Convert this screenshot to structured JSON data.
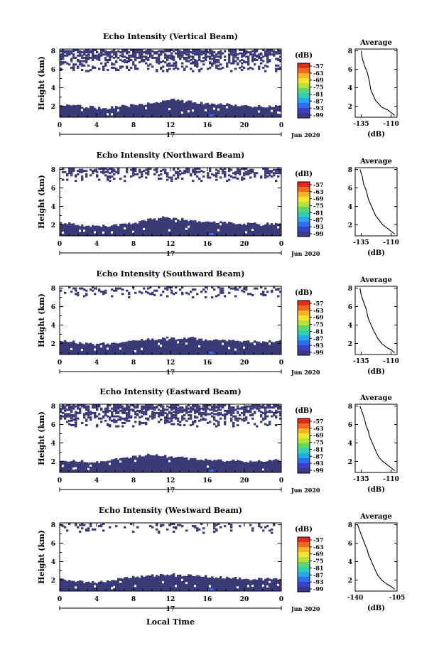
{
  "figure": {
    "date_label": "Jun 2020",
    "day_label": "17",
    "bottom_xlabel": "Local Time",
    "colorbar_unit": "(dB)",
    "colorbar_ticks": [
      "-57",
      "-63",
      "-69",
      "-75",
      "-81",
      "-87",
      "-93",
      "-99"
    ],
    "colors": {
      "echo_fill": "#3a3a78",
      "echo_accent": "#2f6df0",
      "colorbar_top": "#e52a1c",
      "colorbar_bottom": "#3a3a88"
    }
  },
  "chart_data": [
    {
      "type": "heatmap",
      "title": "Echo Intensity (Vertical Beam)",
      "ylabel": "Height (km)",
      "x_ticks": [
        "0",
        "4",
        "8",
        "12",
        "16",
        "20",
        "0"
      ],
      "y_ticks": [
        "2",
        "4",
        "6",
        "8"
      ],
      "xlim": [
        0,
        24
      ],
      "ylim": [
        0.8,
        8.2
      ],
      "colorbar_range": [
        -99,
        -57
      ],
      "low_layer_top_km": [
        2.1,
        2.1,
        2.0,
        1.9,
        1.8,
        1.8,
        1.9,
        2.0,
        2.1,
        2.2,
        2.3,
        2.5,
        2.7,
        2.6,
        2.5,
        2.4,
        2.3,
        2.2,
        2.2,
        2.1,
        2.1,
        2.0,
        2.0,
        2.0,
        2.1
      ],
      "upper_layer_km": [
        5.8,
        8.2
      ],
      "upper_coverage": 0.55
    },
    {
      "type": "line",
      "title": "Average",
      "xlabel": "(dB)",
      "x_ticks": [
        "-135",
        "-110"
      ],
      "xlim": [
        -140,
        -105
      ],
      "y_ticks": [
        "2",
        "4",
        "6",
        "8"
      ],
      "ylim": [
        0.8,
        8.2
      ],
      "x": [
        -107,
        -110,
        -113,
        -118,
        -120,
        -123,
        -125,
        -127,
        -128,
        -129,
        -130,
        -132,
        -134,
        -135
      ],
      "y": [
        1.0,
        1.3,
        1.6,
        1.9,
        2.2,
        2.6,
        3.2,
        3.8,
        4.6,
        5.2,
        5.7,
        6.3,
        7.2,
        8.0
      ]
    },
    {
      "type": "heatmap",
      "title": "Echo Intensity (Northward Beam)",
      "ylabel": "Height (km)",
      "x_ticks": [
        "0",
        "4",
        "8",
        "12",
        "16",
        "20",
        "0"
      ],
      "y_ticks": [
        "2",
        "4",
        "6",
        "8"
      ],
      "xlim": [
        0,
        24
      ],
      "ylim": [
        0.8,
        8.2
      ],
      "colorbar_range": [
        -99,
        -57
      ],
      "low_layer_top_km": [
        2.2,
        2.2,
        2.0,
        1.9,
        1.8,
        1.9,
        2.0,
        2.1,
        2.2,
        2.4,
        2.6,
        2.8,
        2.7,
        2.6,
        2.5,
        2.4,
        2.3,
        2.3,
        2.2,
        2.2,
        2.1,
        2.1,
        2.0,
        2.1,
        2.2
      ],
      "upper_layer_km": [
        6.8,
        8.2
      ],
      "upper_coverage": 0.35
    },
    {
      "type": "line",
      "title": "Average",
      "xlabel": "(dB)",
      "x_ticks": [
        "-135",
        "-110"
      ],
      "xlim": [
        -140,
        -105
      ],
      "y_ticks": [
        "2",
        "4",
        "6",
        "8"
      ],
      "ylim": [
        0.8,
        8.2
      ],
      "x": [
        -107,
        -110,
        -113,
        -117,
        -120,
        -123,
        -125,
        -127,
        -129,
        -130,
        -131,
        -133,
        -134,
        -136
      ],
      "y": [
        1.0,
        1.3,
        1.6,
        2.0,
        2.5,
        3.0,
        3.6,
        4.2,
        4.8,
        5.3,
        5.8,
        6.4,
        7.2,
        8.0
      ]
    },
    {
      "type": "heatmap",
      "title": "Echo Intensity (Southward Beam)",
      "ylabel": "Height (km)",
      "x_ticks": [
        "0",
        "4",
        "8",
        "12",
        "16",
        "20",
        "0"
      ],
      "y_ticks": [
        "2",
        "4",
        "6",
        "8"
      ],
      "xlim": [
        0,
        24
      ],
      "ylim": [
        0.8,
        8.2
      ],
      "colorbar_range": [
        -99,
        -57
      ],
      "low_layer_top_km": [
        2.3,
        2.2,
        2.1,
        2.0,
        1.9,
        2.0,
        2.1,
        2.2,
        2.3,
        2.4,
        2.5,
        2.6,
        2.6,
        2.5,
        2.6,
        2.5,
        2.4,
        2.4,
        2.3,
        2.3,
        2.2,
        2.2,
        2.1,
        2.2,
        2.3
      ],
      "upper_layer_km": [
        7.0,
        8.2
      ],
      "upper_coverage": 0.18
    },
    {
      "type": "line",
      "title": "Average",
      "xlabel": "(dB)",
      "x_ticks": [
        "-135",
        "-110"
      ],
      "xlim": [
        -140,
        -105
      ],
      "y_ticks": [
        "2",
        "4",
        "6",
        "8"
      ],
      "ylim": [
        0.8,
        8.2
      ],
      "x": [
        -107,
        -110,
        -114,
        -118,
        -121,
        -123,
        -125,
        -127,
        -129,
        -130,
        -131,
        -133,
        -135,
        -136
      ],
      "y": [
        1.0,
        1.3,
        1.6,
        2.0,
        2.5,
        3.0,
        3.5,
        4.1,
        4.7,
        5.2,
        5.8,
        6.5,
        7.3,
        8.0
      ]
    },
    {
      "type": "heatmap",
      "title": "Echo Intensity (Eastward Beam)",
      "ylabel": "Height (km)",
      "x_ticks": [
        "0",
        "4",
        "8",
        "12",
        "16",
        "20",
        "0"
      ],
      "y_ticks": [
        "2",
        "4",
        "6",
        "8"
      ],
      "xlim": [
        0,
        24
      ],
      "ylim": [
        0.8,
        8.2
      ],
      "colorbar_range": [
        -99,
        -57
      ],
      "low_layer_top_km": [
        2.1,
        2.1,
        2.0,
        1.9,
        1.9,
        2.0,
        2.2,
        2.4,
        2.5,
        2.6,
        2.7,
        2.6,
        2.5,
        2.4,
        2.3,
        2.3,
        2.2,
        2.2,
        2.1,
        2.1,
        2.0,
        2.0,
        2.0,
        2.1,
        2.1
      ],
      "upper_layer_km": [
        5.8,
        8.2
      ],
      "upper_coverage": 0.5
    },
    {
      "type": "line",
      "title": "Average",
      "xlabel": "(dB)",
      "x_ticks": [
        "-135",
        "-110"
      ],
      "xlim": [
        -140,
        -105
      ],
      "y_ticks": [
        "2",
        "4",
        "6",
        "8"
      ],
      "ylim": [
        0.8,
        8.2
      ],
      "x": [
        -107,
        -110,
        -113,
        -117,
        -120,
        -122,
        -124,
        -126,
        -128,
        -129,
        -131,
        -132,
        -134,
        -136
      ],
      "y": [
        1.0,
        1.3,
        1.6,
        2.0,
        2.4,
        2.9,
        3.5,
        4.1,
        4.7,
        5.3,
        5.9,
        6.5,
        7.3,
        8.0
      ]
    },
    {
      "type": "heatmap",
      "title": "Echo Intensity (Westward Beam)",
      "ylabel": "Height (km)",
      "x_ticks": [
        "0",
        "4",
        "8",
        "12",
        "16",
        "20",
        "0"
      ],
      "y_ticks": [
        "2",
        "4",
        "6",
        "8"
      ],
      "xlim": [
        0,
        24
      ],
      "ylim": [
        0.8,
        8.2
      ],
      "colorbar_range": [
        -99,
        -57
      ],
      "low_layer_top_km": [
        2.1,
        2.0,
        1.9,
        1.8,
        1.8,
        1.9,
        2.1,
        2.2,
        2.3,
        2.4,
        2.5,
        2.6,
        2.6,
        2.5,
        2.5,
        2.4,
        2.4,
        2.3,
        2.3,
        2.2,
        2.2,
        2.1,
        2.1,
        2.1,
        2.1
      ],
      "upper_layer_km": [
        7.2,
        8.2
      ],
      "upper_coverage": 0.15
    },
    {
      "type": "line",
      "title": "Average",
      "xlabel": "(dB)",
      "x_ticks": [
        "-140",
        "-105"
      ],
      "xlim": [
        -140,
        -105
      ],
      "y_ticks": [
        "2",
        "4",
        "6",
        "8"
      ],
      "ylim": [
        0.8,
        8.2
      ],
      "x": [
        -107,
        -110,
        -114,
        -118,
        -121,
        -123,
        -125,
        -127,
        -129,
        -130,
        -132,
        -134,
        -136,
        -138
      ],
      "y": [
        1.0,
        1.3,
        1.6,
        2.0,
        2.5,
        3.0,
        3.6,
        4.2,
        4.8,
        5.3,
        5.9,
        6.6,
        7.3,
        8.0
      ]
    }
  ]
}
